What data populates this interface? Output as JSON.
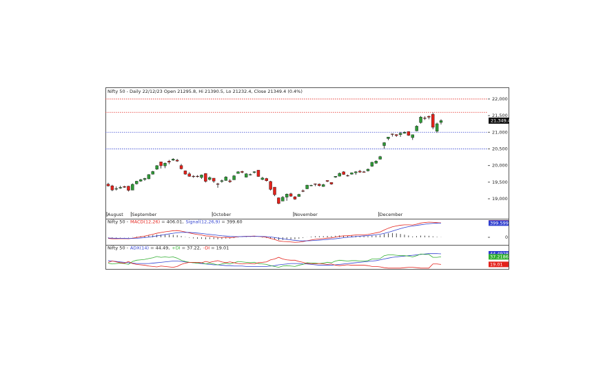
{
  "chart_data": [
    {
      "type": "candlestick",
      "title": "Nifty 50 - Daily 22/12/23 Open 21295.8, Hi 21390.5, Lo 21232.4, Close 21349.4 (0.4%)",
      "categories": [
        "August",
        null,
        null,
        null,
        null,
        null,
        "September",
        null,
        null,
        null,
        null,
        null,
        null,
        null,
        null,
        null,
        null,
        null,
        null,
        null,
        null,
        null,
        null,
        null,
        null,
        null,
        "October",
        null,
        null,
        null,
        null,
        null,
        null,
        null,
        null,
        null,
        null,
        null,
        null,
        null,
        null,
        null,
        null,
        null,
        null,
        null,
        "November",
        null,
        null,
        null,
        null,
        null,
        null,
        null,
        null,
        null,
        null,
        null,
        null,
        null,
        null,
        null,
        null,
        null,
        null,
        null,
        null,
        "December",
        null,
        null,
        null,
        null,
        null,
        null,
        null,
        null,
        null,
        null,
        null,
        null,
        null,
        null,
        null
      ],
      "series": [
        {
          "name": "Nifty 50",
          "up_color": "#2f9a37",
          "down_color": "#e3221b",
          "open": [
            19440,
            19390,
            19300,
            19320,
            19370,
            19380,
            19260,
            19450,
            19530,
            19580,
            19600,
            19740,
            19890,
            20110,
            19990,
            20130,
            20160,
            20160,
            20000,
            19840,
            19750,
            19680,
            19680,
            19640,
            19760,
            19580,
            19620,
            19450,
            19520,
            19550,
            19540,
            19570,
            19760,
            19820,
            19650,
            19730,
            19790,
            19860,
            19580,
            19610,
            19520,
            19350,
            19030,
            18930,
            19050,
            19150,
            19060,
            19070,
            19240,
            19300,
            19400,
            19450,
            19440,
            19370,
            19550,
            19490,
            19650,
            19680,
            19810,
            19700,
            19740,
            19780,
            19830,
            19810,
            19840,
            19980,
            20070,
            20190,
            20600,
            20810,
            20950,
            20930,
            20930,
            20970,
            21020,
            20840,
            21040,
            21290,
            21430,
            21480,
            21540,
            21030,
            21295.8
          ],
          "high": [
            19480,
            19420,
            19370,
            19390,
            19390,
            19390,
            19460,
            19540,
            19600,
            19630,
            19740,
            19840,
            20010,
            20110,
            20090,
            20170,
            20220,
            20200,
            20050,
            19850,
            19800,
            19710,
            19710,
            19730,
            19770,
            19670,
            19620,
            19480,
            19580,
            19680,
            19590,
            19710,
            19830,
            19840,
            19770,
            19760,
            19830,
            19860,
            19660,
            19630,
            19540,
            19350,
            19040,
            19080,
            19160,
            19180,
            19080,
            19150,
            19280,
            19420,
            19420,
            19460,
            19460,
            19450,
            19550,
            19490,
            19680,
            19790,
            19830,
            19730,
            19790,
            19830,
            19870,
            19840,
            19910,
            20110,
            20160,
            20290,
            20700,
            20860,
            20960,
            20940,
            21010,
            21030,
            21030,
            20930,
            21210,
            21490,
            21480,
            21500,
            21590,
            21290,
            21390.5
          ],
          "low": [
            19370,
            19230,
            19250,
            19300,
            19330,
            19220,
            19260,
            19430,
            19510,
            19540,
            19590,
            19730,
            19870,
            19910,
            19920,
            20040,
            20140,
            20110,
            19880,
            19720,
            19660,
            19630,
            19640,
            19600,
            19490,
            19550,
            19480,
            19330,
            19480,
            19540,
            19480,
            19570,
            19760,
            19770,
            19640,
            19700,
            19760,
            19660,
            19560,
            19520,
            19250,
            19080,
            18840,
            18930,
            18940,
            19060,
            18970,
            19060,
            19200,
            19290,
            19380,
            19380,
            19370,
            19360,
            19500,
            19420,
            19630,
            19670,
            19720,
            19670,
            19730,
            19720,
            19780,
            19790,
            19820,
            19960,
            20050,
            20180,
            20510,
            20760,
            20870,
            20860,
            20860,
            20960,
            20890,
            20770,
            21030,
            21260,
            21370,
            21390,
            21090,
            20980,
            21232.4
          ],
          "close": [
            19386,
            19265,
            19306,
            19342,
            19347,
            19254,
            19435,
            19528,
            19575,
            19611,
            19727,
            19820,
            19996,
            19993,
            20070,
            20103,
            20192,
            20134,
            19901,
            19742,
            19674,
            19675,
            19665,
            19716,
            19524,
            19638,
            19529,
            19436,
            19545,
            19654,
            19512,
            19690,
            19811,
            19794,
            19751,
            19731,
            19811,
            19671,
            19624,
            19542,
            19281,
            19122,
            18857,
            19047,
            19140,
            19079,
            18989,
            19133,
            19230,
            19411,
            19406,
            19443,
            19395,
            19425,
            19525,
            19443,
            19675,
            19765,
            19732,
            19694,
            19783,
            19812,
            19802,
            19795,
            19889,
            20097,
            20133,
            20268,
            20687,
            20855,
            20937,
            20901,
            20969,
            20997,
            20906,
            20926,
            21183,
            21457,
            21419,
            21453,
            21150,
            21255,
            21349.4
          ]
        }
      ],
      "levels": [
        {
          "value": 22000,
          "color": "#e3221b"
        },
        {
          "value": 21600,
          "color": "#e3221b"
        },
        {
          "value": 21000,
          "color": "#2f3fcf"
        },
        {
          "value": 20500,
          "color": "#2f3fcf"
        }
      ],
      "last_price": {
        "value": 21349.4,
        "label": "21,349.4"
      },
      "ylim": [
        18400,
        22350
      ],
      "yticks": [
        {
          "value": 19000,
          "label": "19,000"
        },
        {
          "value": 19500,
          "label": "19,500"
        },
        {
          "value": 20000,
          "label": "20,000"
        },
        {
          "value": 20500,
          "label": "20,500"
        },
        {
          "value": 21000,
          "label": "21,000"
        },
        {
          "value": 21500,
          "label": "21,500"
        },
        {
          "value": 22000,
          "label": "22,000"
        }
      ],
      "grid": false
    },
    {
      "type": "line",
      "label_prefix": "Nifty 50 -",
      "histogram": {
        "color": "#000000",
        "values": [
          -10,
          -16,
          -13,
          -9,
          -5,
          -8,
          6,
          21,
          33,
          42,
          54,
          63,
          75,
          76,
          77,
          74,
          71,
          61,
          37,
          9,
          -13,
          -30,
          -40,
          -44,
          -55,
          -48,
          -50,
          -56,
          -49,
          -35,
          -36,
          -21,
          -5,
          4,
          7,
          5,
          8,
          -2,
          -10,
          -20,
          -40,
          -56,
          -77,
          -74,
          -63,
          -58,
          -55,
          -40,
          -20,
          4,
          19,
          31,
          33,
          34,
          39,
          35,
          44,
          55,
          52,
          45,
          44,
          43,
          38,
          30,
          32,
          45,
          52,
          62,
          94,
          115,
          120,
          110,
          95,
          75,
          50,
          25,
          35,
          48,
          47,
          43,
          28,
          14,
          6.41
        ]
      },
      "series": [
        {
          "name": "MACD(12,26)",
          "readout": "= 406.01,",
          "color": "#e3221b",
          "value_label": "406.01",
          "values": [
            -30,
            -40,
            -40,
            -38,
            -35,
            -40,
            -25,
            -5,
            15,
            35,
            60,
            85,
            115,
            135,
            155,
            170,
            185,
            190,
            175,
            150,
            125,
            100,
            80,
            65,
            40,
            35,
            20,
            0,
            -5,
            0,
            -10,
            0,
            15,
            25,
            30,
            30,
            35,
            25,
            15,
            0,
            -30,
            -60,
            -100,
            -115,
            -120,
            -130,
            -140,
            -135,
            -120,
            -95,
            -75,
            -55,
            -45,
            -35,
            -20,
            -15,
            5,
            30,
            40,
            45,
            55,
            65,
            70,
            70,
            80,
            105,
            125,
            150,
            205,
            255,
            295,
            320,
            340,
            350,
            350,
            345,
            370,
            400,
            415,
            425,
            420,
            412,
            406.01
          ]
        },
        {
          "name": "Signal(12,26,9)",
          "readout": "= 399.60",
          "color": "#2f3fcf",
          "value_label": "399.599",
          "values": [
            -20,
            -24,
            -27,
            -29,
            -30,
            -32,
            -31,
            -26,
            -18,
            -7,
            6,
            22,
            40,
            59,
            78,
            96,
            114,
            129,
            138,
            141,
            138,
            130,
            120,
            109,
            95,
            83,
            70,
            56,
            44,
            35,
            26,
            21,
            20,
            21,
            23,
            25,
            27,
            27,
            25,
            20,
            10,
            -4,
            -23,
            -41,
            -57,
            -72,
            -85,
            -95,
            -100,
            -99,
            -94,
            -86,
            -78,
            -69,
            -59,
            -50,
            -39,
            -25,
            -12,
            0,
            11,
            22,
            32,
            40,
            48,
            60,
            73,
            88,
            111,
            140,
            175,
            210,
            245,
            275,
            300,
            320,
            335,
            352,
            368,
            382,
            392,
            398,
            399.6
          ]
        }
      ],
      "ylim": [
        -212,
        522
      ],
      "yticks": [
        0
      ]
    },
    {
      "type": "line",
      "label_prefix": "Nifty 50 -",
      "series": [
        {
          "name": "ADX(14)",
          "readout": "= 44.49,",
          "color": "#2f3fcf",
          "value_label": "44.4928",
          "values": [
            28,
            27,
            26,
            25,
            24,
            23,
            22,
            21,
            21,
            21,
            21,
            22,
            23,
            24,
            25,
            26,
            27,
            27,
            26,
            25,
            24,
            23,
            22,
            21,
            20,
            19,
            18,
            18,
            17,
            16,
            16,
            15,
            15,
            15,
            14,
            14,
            14,
            14,
            14,
            14,
            15,
            16,
            18,
            19,
            20,
            21,
            21,
            21,
            20,
            20,
            19,
            18,
            17,
            17,
            17,
            17,
            18,
            19,
            20,
            21,
            22,
            23,
            24,
            25,
            26,
            27,
            28,
            30,
            32,
            34,
            36,
            37,
            38,
            39,
            40,
            41,
            42,
            43,
            44,
            45,
            45,
            45,
            44.49
          ]
        },
        {
          "name": "+DI",
          "readout": "= 37.22,",
          "color": "#2fae2f",
          "value_label": "37.2186",
          "values": [
            22,
            20,
            21,
            22,
            21,
            19,
            26,
            29,
            30,
            31,
            33,
            35,
            38,
            36,
            37,
            36,
            37,
            34,
            29,
            26,
            24,
            23,
            22,
            23,
            20,
            22,
            20,
            18,
            20,
            22,
            20,
            23,
            26,
            25,
            24,
            23,
            24,
            21,
            20,
            19,
            16,
            14,
            12,
            15,
            16,
            15,
            14,
            17,
            19,
            23,
            22,
            22,
            21,
            22,
            24,
            23,
            27,
            29,
            28,
            27,
            28,
            28,
            27,
            27,
            28,
            32,
            32,
            33,
            40,
            42,
            42,
            41,
            40,
            40,
            39,
            37,
            40,
            44,
            43,
            43,
            36,
            36,
            37.22
          ]
        },
        {
          "name": "-DI",
          "readout": "= 19.01",
          "color": "#e3221b",
          "value_label": "19.01",
          "values": [
            24,
            27,
            25,
            23,
            22,
            26,
            21,
            19,
            18,
            17,
            15,
            14,
            13,
            15,
            14,
            13,
            12,
            14,
            19,
            22,
            24,
            24,
            24,
            23,
            26,
            24,
            26,
            28,
            25,
            23,
            25,
            23,
            21,
            20,
            21,
            21,
            20,
            23,
            24,
            25,
            30,
            32,
            36,
            32,
            30,
            29,
            29,
            26,
            24,
            21,
            21,
            20,
            21,
            20,
            19,
            20,
            17,
            16,
            17,
            18,
            17,
            17,
            17,
            17,
            16,
            14,
            14,
            13,
            11,
            10,
            10,
            10,
            10,
            11,
            12,
            12,
            11,
            10,
            10,
            10,
            20,
            20,
            19.01
          ]
        }
      ],
      "ylim": [
        8,
        66
      ]
    }
  ]
}
